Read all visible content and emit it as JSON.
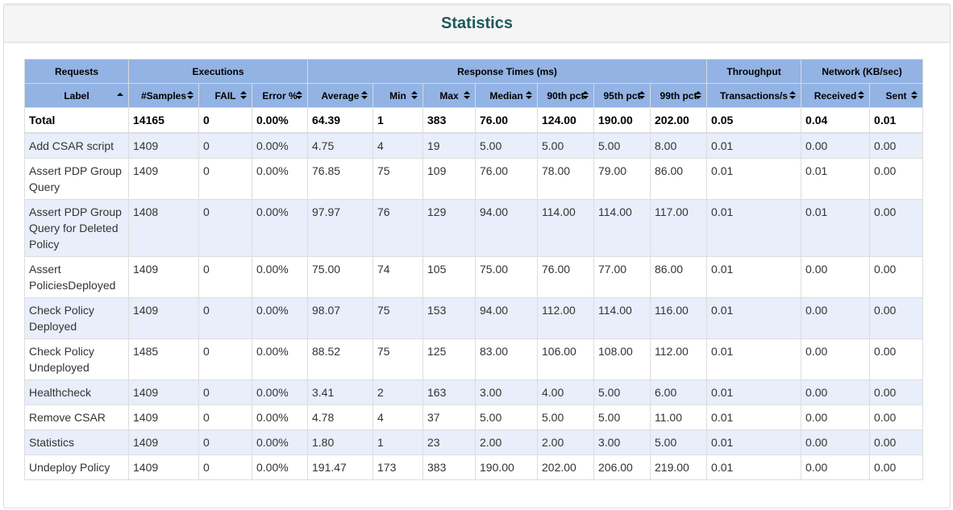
{
  "page": {
    "title": "Statistics"
  },
  "groups": [
    "Requests",
    "Executions",
    "Response Times (ms)",
    "Throughput",
    "Network (KB/sec)"
  ],
  "columns": [
    "Label",
    "#Samples",
    "FAIL",
    "Error %",
    "Average",
    "Min",
    "Max",
    "Median",
    "90th pct",
    "95th pct",
    "99th pct",
    "Transactions/s",
    "Received",
    "Sent"
  ],
  "total": [
    "Total",
    "14165",
    "0",
    "0.00%",
    "64.39",
    "1",
    "383",
    "76.00",
    "124.00",
    "190.00",
    "202.00",
    "0.05",
    "0.04",
    "0.01"
  ],
  "rows": [
    [
      "Add CSAR script",
      "1409",
      "0",
      "0.00%",
      "4.75",
      "4",
      "19",
      "5.00",
      "5.00",
      "5.00",
      "8.00",
      "0.01",
      "0.00",
      "0.00"
    ],
    [
      "Assert PDP Group Query",
      "1409",
      "0",
      "0.00%",
      "76.85",
      "75",
      "109",
      "76.00",
      "78.00",
      "79.00",
      "86.00",
      "0.01",
      "0.01",
      "0.00"
    ],
    [
      "Assert PDP Group Query for Deleted Policy",
      "1408",
      "0",
      "0.00%",
      "97.97",
      "76",
      "129",
      "94.00",
      "114.00",
      "114.00",
      "117.00",
      "0.01",
      "0.01",
      "0.00"
    ],
    [
      "Assert PoliciesDeployed",
      "1409",
      "0",
      "0.00%",
      "75.00",
      "74",
      "105",
      "75.00",
      "76.00",
      "77.00",
      "86.00",
      "0.01",
      "0.00",
      "0.00"
    ],
    [
      "Check Policy Deployed",
      "1409",
      "0",
      "0.00%",
      "98.07",
      "75",
      "153",
      "94.00",
      "112.00",
      "114.00",
      "116.00",
      "0.01",
      "0.00",
      "0.00"
    ],
    [
      "Check Policy Undeployed",
      "1485",
      "0",
      "0.00%",
      "88.52",
      "75",
      "125",
      "83.00",
      "106.00",
      "108.00",
      "112.00",
      "0.01",
      "0.00",
      "0.00"
    ],
    [
      "Healthcheck",
      "1409",
      "0",
      "0.00%",
      "3.41",
      "2",
      "163",
      "3.00",
      "4.00",
      "5.00",
      "6.00",
      "0.01",
      "0.00",
      "0.00"
    ],
    [
      "Remove CSAR",
      "1409",
      "0",
      "0.00%",
      "4.78",
      "4",
      "37",
      "5.00",
      "5.00",
      "5.00",
      "11.00",
      "0.01",
      "0.00",
      "0.00"
    ],
    [
      "Statistics",
      "1409",
      "0",
      "0.00%",
      "1.80",
      "1",
      "23",
      "2.00",
      "2.00",
      "3.00",
      "5.00",
      "0.01",
      "0.00",
      "0.00"
    ],
    [
      "Undeploy Policy",
      "1409",
      "0",
      "0.00%",
      "191.47",
      "173",
      "383",
      "190.00",
      "202.00",
      "206.00",
      "219.00",
      "0.01",
      "0.00",
      "0.00"
    ]
  ],
  "colors": {
    "header_bg": "#92b3e4",
    "odd_row": "#e8eefa",
    "title": "#1e5a5c"
  }
}
